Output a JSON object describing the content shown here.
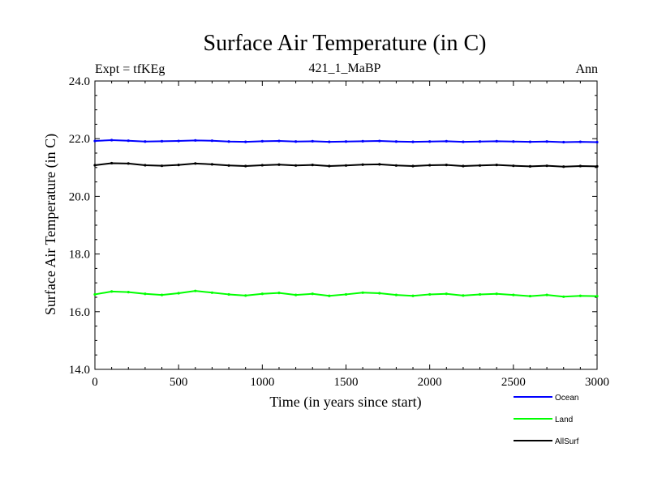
{
  "chart_data": {
    "type": "line",
    "title": "Surface Air Temperature (in C)",
    "subtitle": "421_1_MaBP",
    "left_label": "Expt = tfKEg",
    "right_label": "Ann",
    "xlabel": "Time (in years since start)",
    "ylabel": "Surface Air Temperature (in C)",
    "xlim": [
      0,
      3000
    ],
    "ylim": [
      14.0,
      24.0
    ],
    "x_ticks": [
      0,
      500,
      1000,
      1500,
      2000,
      2500,
      3000
    ],
    "y_ticks": [
      14.0,
      16.0,
      18.0,
      20.0,
      22.0,
      24.0
    ],
    "x_tick_labels": [
      "0",
      "500",
      "1000",
      "1500",
      "2000",
      "2500",
      "3000"
    ],
    "y_tick_labels": [
      "14.0",
      "16.0",
      "18.0",
      "20.0",
      "22.0",
      "24.0"
    ],
    "grid": false,
    "legend_position": "bottom-right",
    "series": [
      {
        "name": "Ocean",
        "color": "#0000ff",
        "x": [
          0,
          100,
          200,
          300,
          400,
          500,
          600,
          700,
          800,
          900,
          1000,
          1100,
          1200,
          1300,
          1400,
          1500,
          1600,
          1700,
          1800,
          1900,
          2000,
          2100,
          2200,
          2300,
          2400,
          2500,
          2600,
          2700,
          2800,
          2900,
          3000
        ],
        "y": [
          21.92,
          21.95,
          21.93,
          21.9,
          21.91,
          21.92,
          21.94,
          21.93,
          21.9,
          21.89,
          21.91,
          21.92,
          21.9,
          21.91,
          21.89,
          21.9,
          21.91,
          21.92,
          21.9,
          21.89,
          21.9,
          21.91,
          21.89,
          21.9,
          21.91,
          21.9,
          21.89,
          21.9,
          21.88,
          21.89,
          21.88
        ]
      },
      {
        "name": "Land",
        "color": "#00ff00",
        "x": [
          0,
          100,
          200,
          300,
          400,
          500,
          600,
          700,
          800,
          900,
          1000,
          1100,
          1200,
          1300,
          1400,
          1500,
          1600,
          1700,
          1800,
          1900,
          2000,
          2100,
          2200,
          2300,
          2400,
          2500,
          2600,
          2700,
          2800,
          2900,
          3000
        ],
        "y": [
          16.6,
          16.7,
          16.68,
          16.62,
          16.58,
          16.64,
          16.72,
          16.66,
          16.6,
          16.56,
          16.62,
          16.65,
          16.58,
          16.62,
          16.55,
          16.6,
          16.66,
          16.64,
          16.58,
          16.55,
          16.6,
          16.62,
          16.56,
          16.6,
          16.62,
          16.58,
          16.54,
          16.58,
          16.52,
          16.55,
          16.54
        ]
      },
      {
        "name": "AllSurf",
        "color": "#000000",
        "x": [
          0,
          100,
          200,
          300,
          400,
          500,
          600,
          700,
          800,
          900,
          1000,
          1100,
          1200,
          1300,
          1400,
          1500,
          1600,
          1700,
          1800,
          1900,
          2000,
          2100,
          2200,
          2300,
          2400,
          2500,
          2600,
          2700,
          2800,
          2900,
          3000
        ],
        "y": [
          21.08,
          21.15,
          21.14,
          21.08,
          21.06,
          21.09,
          21.14,
          21.11,
          21.07,
          21.05,
          21.08,
          21.1,
          21.07,
          21.09,
          21.05,
          21.07,
          21.1,
          21.11,
          21.07,
          21.05,
          21.08,
          21.09,
          21.05,
          21.07,
          21.09,
          21.06,
          21.04,
          21.06,
          21.03,
          21.05,
          21.04
        ]
      }
    ]
  }
}
